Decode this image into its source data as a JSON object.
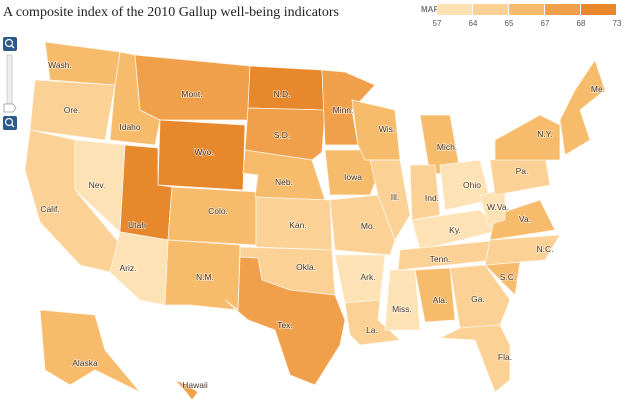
{
  "header": {
    "title": "A composite index of the 2010 Gallup well-being indicators"
  },
  "map_key": {
    "title": "MAP KEY",
    "ticks": [
      57,
      64,
      65,
      67,
      68,
      73
    ],
    "colors": [
      "#fde2b6",
      "#fbd196",
      "#f7bb6c",
      "#f0a04a",
      "#e6882b"
    ]
  },
  "map": {
    "labels": [
      "Wash.",
      "Ore.",
      "Calif.",
      "Nev.",
      "Idaho",
      "Mont.",
      "Wyo.",
      "Utah",
      "Ariz.",
      "Colo.",
      "N.M.",
      "N.D.",
      "S.D.",
      "Neb.",
      "Kan.",
      "Okla.",
      "Tex.",
      "Minn.",
      "Iowa",
      "Mo.",
      "Ark.",
      "La.",
      "Wis.",
      "Ill.",
      "Miss.",
      "Mich.",
      "Ind.",
      "Ky.",
      "Tenn.",
      "Ala.",
      "Ga.",
      "Fla.",
      "Ohio",
      "W.Va.",
      "Va.",
      "N.C.",
      "S.C.",
      "Pa.",
      "N.Y.",
      "Me.",
      "Alaska",
      "Hawaii"
    ]
  }
}
